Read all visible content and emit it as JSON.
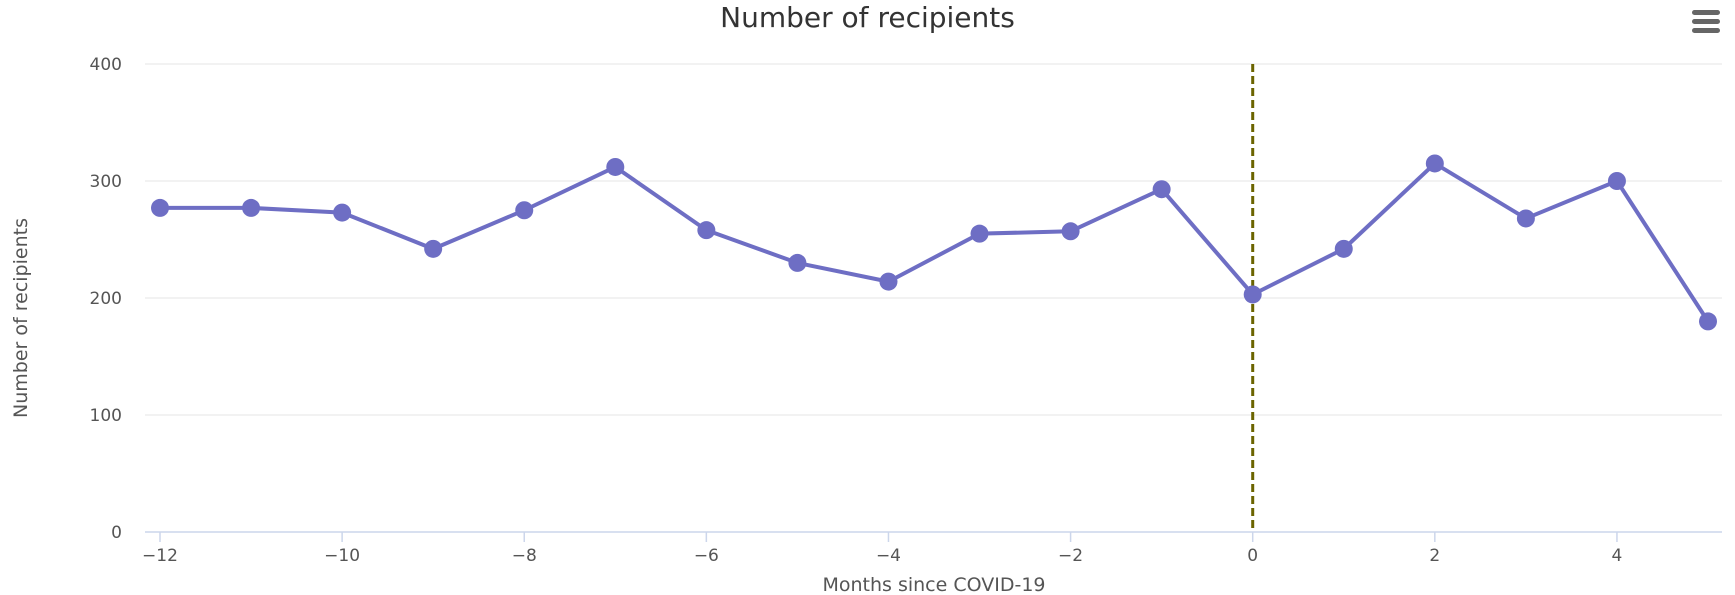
{
  "chart_data": {
    "type": "line",
    "title": "Number of recipients",
    "xlabel": "Months since COVID-19",
    "ylabel": "Number of recipients",
    "x": [
      -12,
      -11,
      -10,
      -9,
      -8,
      -7,
      -6,
      -5,
      -4,
      -3,
      -2,
      -1,
      0,
      1,
      2,
      3,
      4,
      5
    ],
    "series": [
      {
        "values": [
          277,
          277,
          273,
          242,
          275,
          312,
          258,
          230,
          214,
          255,
          257,
          293,
          203,
          242,
          315,
          268,
          300,
          180
        ]
      }
    ],
    "xlim": [
      -12,
      5
    ],
    "ylim": [
      0,
      400
    ],
    "x_ticks": [
      -12,
      -10,
      -8,
      -6,
      -4,
      -2,
      0,
      2,
      4
    ],
    "x_tick_labels": [
      "−12",
      "−10",
      "−8",
      "−6",
      "−4",
      "−2",
      "0",
      "2",
      "4"
    ],
    "y_ticks": [
      0,
      100,
      200,
      300,
      400
    ],
    "y_tick_labels": [
      "0",
      "100",
      "200",
      "300",
      "400"
    ],
    "grid": true,
    "legend": "none",
    "annotations": [
      {
        "type": "vertical-line",
        "x": 0,
        "style": "dashed"
      }
    ],
    "colors": {
      "series": "#6e6ec4",
      "marker_line": "#6b6400",
      "grid": "#e6e6e6",
      "axis": "#ccd6eb"
    }
  }
}
